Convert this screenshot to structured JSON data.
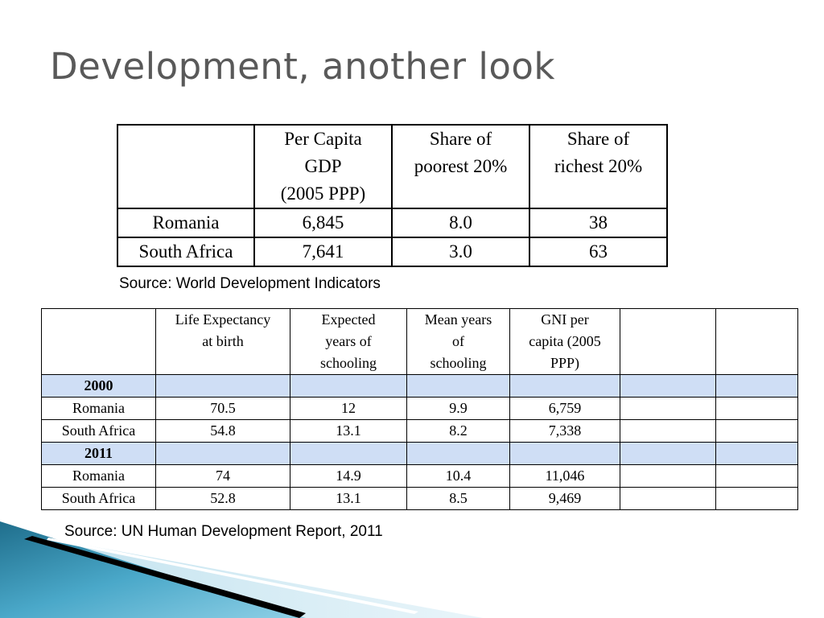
{
  "slide": {
    "title": "Development, another look"
  },
  "table1": {
    "headers": [
      "",
      "Per Capita GDP (2005 PPP)",
      "Share of poorest 20%",
      "Share of richest 20%"
    ],
    "header_lines": [
      [],
      [
        "Per Capita",
        "GDP",
        "(2005 PPP)"
      ],
      [
        "Share of",
        "poorest 20%"
      ],
      [
        "Share of",
        "richest 20%"
      ]
    ],
    "rows": [
      [
        "Romania",
        "6,845",
        "8.0",
        "38"
      ],
      [
        "South Africa",
        "7,641",
        "3.0",
        "63"
      ]
    ]
  },
  "source1": "Source: World Development Indicators",
  "table2": {
    "header_lines": [
      [],
      [
        "Life Expectancy",
        "at birth"
      ],
      [
        "Expected",
        "years of",
        "schooling"
      ],
      [
        "Mean years",
        "of",
        "schooling"
      ],
      [
        "GNI per",
        "capita (2005",
        "PPP)"
      ],
      [],
      []
    ],
    "sections": [
      {
        "year": "2000",
        "rows": [
          [
            "Romania",
            "70.5",
            "12",
            "9.9",
            "6,759",
            "",
            ""
          ],
          [
            "South Africa",
            "54.8",
            "13.1",
            "8.2",
            "7,338",
            "",
            ""
          ]
        ]
      },
      {
        "year": "2011",
        "rows": [
          [
            "Romania",
            "74",
            "14.9",
            "10.4",
            "11,046",
            "",
            ""
          ],
          [
            "South Africa",
            "52.8",
            "13.1",
            "8.5",
            "9,469",
            "",
            ""
          ]
        ]
      }
    ]
  },
  "source2": "Source: UN Human Development Report, 2011",
  "colors": {
    "title": "#595959",
    "year_row_fill": "#cfdef5",
    "wave_dark": "#1f6e8c",
    "wave_light": "#7cc3dc"
  }
}
